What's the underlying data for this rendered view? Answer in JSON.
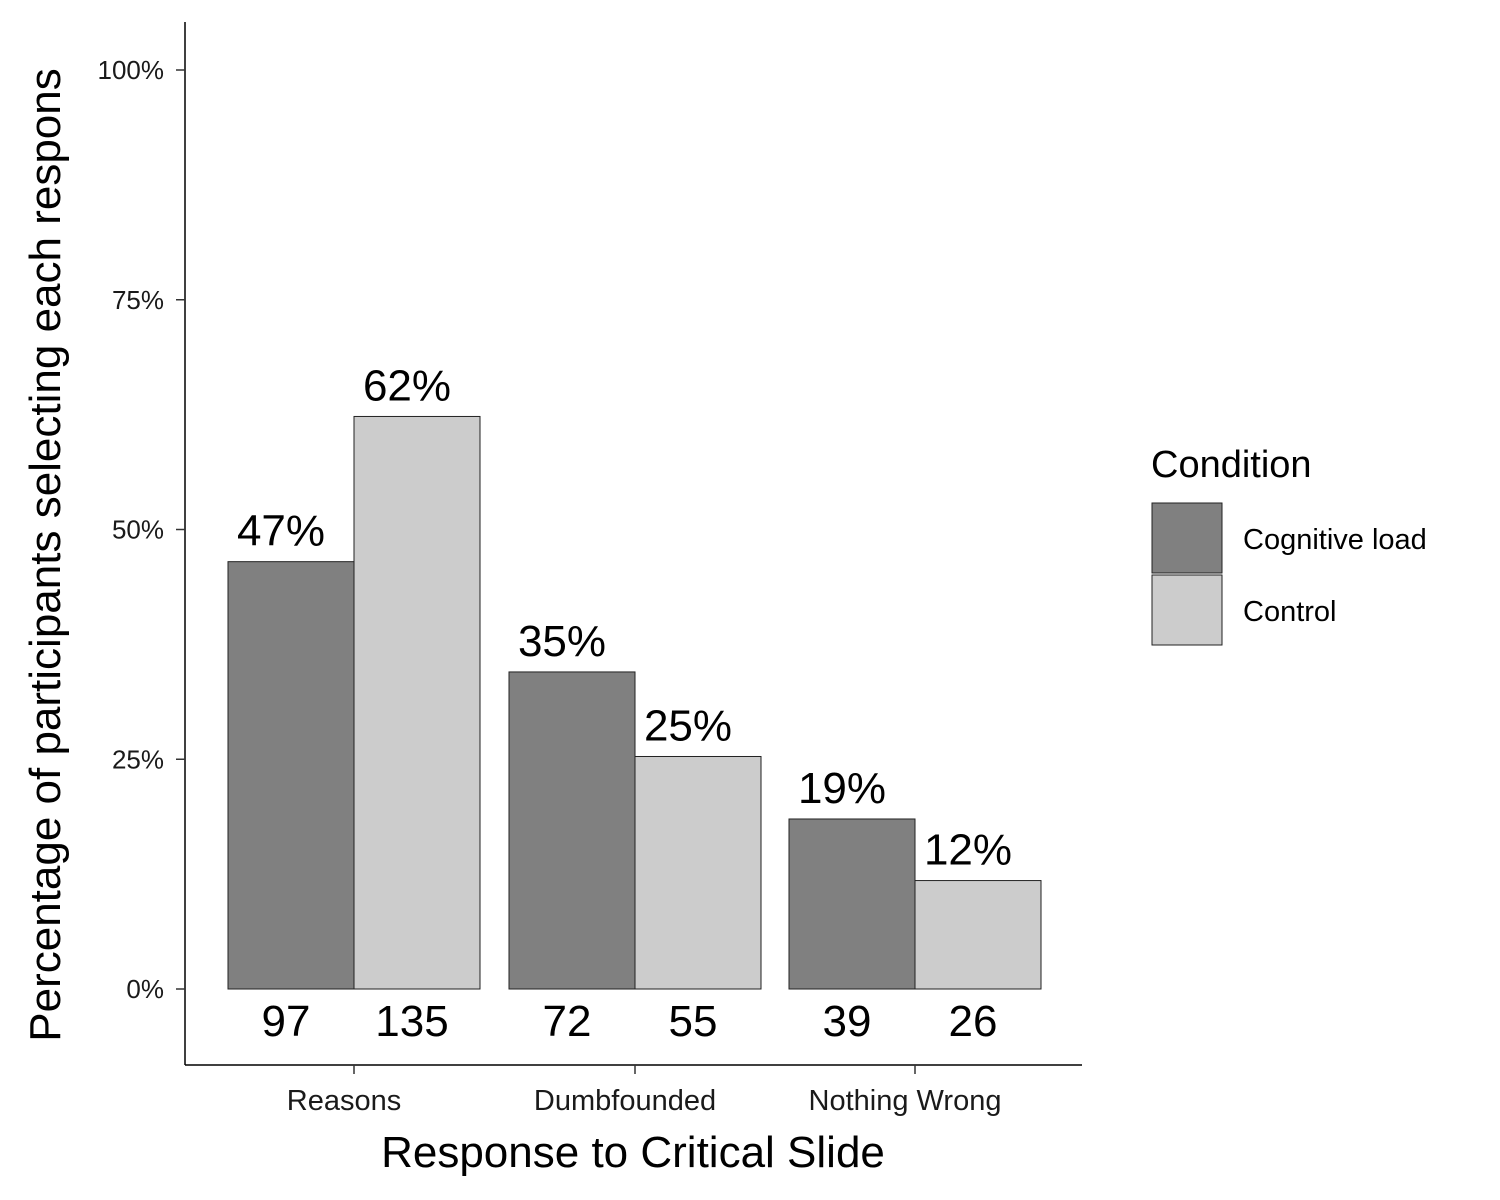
{
  "chart_data": {
    "type": "bar",
    "xlabel": "Response to Critical Slide",
    "ylabel": "Percentage of participants selecting each respons",
    "categories": [
      "Reasons",
      "Dumbfounded",
      "Nothing Wrong"
    ],
    "series": [
      {
        "name": "Cognitive load",
        "color": "#808080",
        "values": [
          0.465,
          0.345,
          0.185
        ],
        "pct_labels": [
          "47%",
          "35%",
          "19%"
        ],
        "count_labels": [
          "97",
          "72",
          "39"
        ]
      },
      {
        "name": "Control",
        "color": "#cccccc",
        "values": [
          0.623,
          0.253,
          0.118
        ],
        "pct_labels": [
          "62%",
          "25%",
          "12%"
        ],
        "count_labels": [
          "135",
          "55",
          "26"
        ]
      }
    ],
    "yticks": [
      0,
      0.25,
      0.5,
      0.75,
      1.0
    ],
    "ytick_labels": [
      "0%",
      "25%",
      "50%",
      "75%",
      "100%"
    ],
    "ylim": [
      -0.08,
      1.05
    ],
    "legend": {
      "title": "Condition",
      "position": "right"
    }
  }
}
